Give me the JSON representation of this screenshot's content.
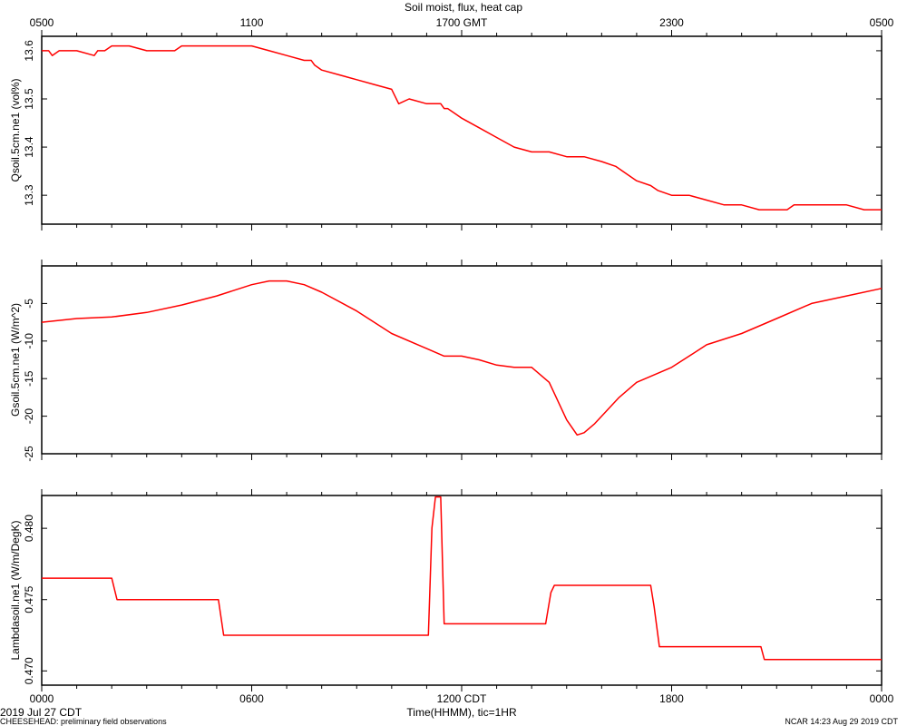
{
  "chart_data": [
    {
      "type": "line",
      "title": "Soil moist, flux, heat cap",
      "ylabel": "Qsoil.5cm.ne1 (vol%)",
      "ylim": [
        13.24,
        13.63
      ],
      "yticks": [
        13.3,
        13.4,
        13.5,
        13.6
      ],
      "ytick_labels": [
        "13.3",
        "13.4",
        "13.5",
        "13.6"
      ],
      "top_axis_ticks": [
        "0500",
        "1100",
        "1700 GMT",
        "2300",
        "0500"
      ],
      "color": "#ff0000",
      "series": [
        {
          "x": [
            0,
            0.2,
            0.3,
            0.5,
            1,
            1.5,
            1.6,
            1.8,
            2,
            2.2,
            2.5,
            3,
            3.5,
            3.8,
            4,
            4.5,
            5,
            5.5,
            6,
            6.5,
            7,
            7.5,
            7.7,
            7.8,
            8,
            8.5,
            9,
            9.5,
            10,
            10.2,
            10.5,
            11,
            11.4,
            11.5,
            11.6,
            11.8,
            12,
            12.5,
            13,
            13.5,
            14,
            14.5,
            15,
            15.5,
            16,
            16.4,
            16.6,
            17,
            17.4,
            17.6,
            18,
            18.5,
            19,
            19.5,
            20,
            20.5,
            21,
            21.1,
            21.3,
            21.5,
            22,
            23,
            23.5,
            24
          ],
          "y": [
            13.6,
            13.6,
            13.59,
            13.6,
            13.6,
            13.59,
            13.6,
            13.6,
            13.61,
            13.61,
            13.61,
            13.6,
            13.6,
            13.6,
            13.61,
            13.61,
            13.61,
            13.61,
            13.61,
            13.6,
            13.59,
            13.58,
            13.58,
            13.57,
            13.56,
            13.55,
            13.54,
            13.53,
            13.52,
            13.49,
            13.5,
            13.49,
            13.49,
            13.48,
            13.48,
            13.47,
            13.46,
            13.44,
            13.42,
            13.4,
            13.39,
            13.39,
            13.38,
            13.38,
            13.37,
            13.36,
            13.35,
            13.33,
            13.32,
            13.31,
            13.3,
            13.3,
            13.29,
            13.28,
            13.28,
            13.27,
            13.27,
            13.27,
            13.27,
            13.28,
            13.28,
            13.28,
            13.27,
            13.27
          ]
        }
      ]
    },
    {
      "type": "line",
      "ylabel": "Gsoil.5cm.ne1 (W/m^2)",
      "ylim": [
        -25,
        0
      ],
      "yticks": [
        -5,
        -10,
        -15,
        -20,
        -25
      ],
      "ytick_labels": [
        "-5",
        "-10",
        "-15",
        "-20",
        "-25"
      ],
      "color": "#ff0000",
      "series": [
        {
          "x": [
            0,
            1,
            2,
            3,
            4,
            5,
            6,
            6.5,
            7,
            7.5,
            8,
            9,
            10,
            11,
            11.5,
            12,
            12.5,
            13,
            13.5,
            14,
            14.5,
            15,
            15.3,
            15.5,
            15.8,
            16,
            16.5,
            17,
            17.5,
            18,
            18.5,
            19,
            20,
            21,
            22,
            23,
            24
          ],
          "y": [
            -7.5,
            -7.0,
            -6.8,
            -6.2,
            -5.2,
            -4.0,
            -2.5,
            -2.0,
            -2.0,
            -2.5,
            -3.5,
            -6.0,
            -9.0,
            -11.0,
            -12.0,
            -12.0,
            -12.5,
            -13.2,
            -13.5,
            -13.5,
            -15.5,
            -20.5,
            -22.5,
            -22.2,
            -21.0,
            -20.0,
            -17.5,
            -15.5,
            -14.5,
            -13.5,
            -12.0,
            -10.5,
            -9.0,
            -7.0,
            -5.0,
            -4.0,
            -3.0
          ]
        }
      ]
    },
    {
      "type": "line",
      "ylabel": "Lambdasoil.ne1 (W/m/DegK)",
      "ylim": [
        0.469,
        0.4823
      ],
      "yticks": [
        0.47,
        0.475,
        0.48
      ],
      "ytick_labels": [
        "0.470",
        "0.475",
        "0.480"
      ],
      "bottom_axis_ticks": [
        "0000",
        "0600",
        "1200 CDT",
        "1800",
        "0000"
      ],
      "xlabel": "Time(HHMM), tic=1HR",
      "color": "#ff0000",
      "series": [
        {
          "x": [
            0,
            2,
            2.15,
            5.05,
            5.2,
            11.05,
            11.15,
            11.25,
            11.4,
            11.5,
            14.4,
            14.55,
            14.65,
            17.4,
            17.5,
            17.65,
            20.55,
            20.65,
            24
          ],
          "y": [
            0.4765,
            0.4765,
            0.475,
            0.475,
            0.4725,
            0.4725,
            0.48,
            0.4822,
            0.4822,
            0.4733,
            0.4733,
            0.4755,
            0.476,
            0.476,
            0.4745,
            0.4717,
            0.4717,
            0.4708,
            0.4708
          ]
        }
      ]
    }
  ],
  "footer": {
    "date": "2019 Jul 27 CDT",
    "project": "CHEESEHEAD: preliminary field observations",
    "credit": "NCAR 14:23 Aug 29 2019 CDT"
  }
}
